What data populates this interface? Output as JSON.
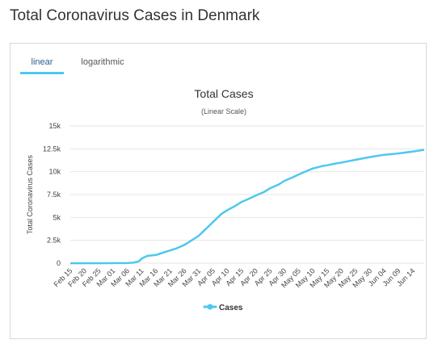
{
  "page": {
    "title": "Total Coronavirus Cases in Denmark"
  },
  "tabs": [
    {
      "label": "linear",
      "active": true
    },
    {
      "label": "logarithmic",
      "active": false
    }
  ],
  "colors": {
    "series": "#4dc8f0",
    "grid": "#e6e6e6",
    "tab_accent": "#4dc8f0"
  },
  "chart_data": {
    "type": "line",
    "title": "Total Cases",
    "subtitle": "(Linear Scale)",
    "ylabel": "Total Coronavirus Cases",
    "xlabel": "",
    "ylim": [
      0,
      15000
    ],
    "yticks": [
      0,
      2500,
      5000,
      7500,
      10000,
      12500,
      15000
    ],
    "ytick_labels": [
      "0",
      "2.5k",
      "5k",
      "7.5k",
      "10k",
      "12.5k",
      "15k"
    ],
    "xtick_labels": [
      "Feb 15",
      "Feb 20",
      "Feb 25",
      "Mar 01",
      "Mar 06",
      "Mar 11",
      "Mar 16",
      "Mar 21",
      "Mar 26",
      "Mar 31",
      "Apr 05",
      "Apr 10",
      "Apr 15",
      "Apr 20",
      "Apr 25",
      "Apr 30",
      "May 05",
      "May 10",
      "May 15",
      "May 20",
      "May 25",
      "May 30",
      "Jun 04",
      "Jun 09",
      "Jun 14"
    ],
    "grid": true,
    "legend_position": "bottom-center",
    "series": [
      {
        "name": "Cases",
        "x": [
          "Feb 15",
          "Feb 20",
          "Feb 25",
          "Mar 01",
          "Mar 06",
          "Mar 08",
          "Mar 10",
          "Mar 11",
          "Mar 13",
          "Mar 16",
          "Mar 18",
          "Mar 21",
          "Mar 23",
          "Mar 26",
          "Mar 28",
          "Mar 31",
          "Apr 02",
          "Apr 05",
          "Apr 08",
          "Apr 10",
          "Apr 13",
          "Apr 15",
          "Apr 18",
          "Apr 20",
          "Apr 23",
          "Apr 25",
          "Apr 28",
          "Apr 30",
          "May 03",
          "May 05",
          "May 08",
          "May 10",
          "May 13",
          "May 15",
          "May 18",
          "May 20",
          "May 25",
          "May 30",
          "Jun 04",
          "Jun 09",
          "Jun 14",
          "Jun 18"
        ],
        "values": [
          0,
          0,
          0,
          5,
          20,
          50,
          200,
          500,
          800,
          900,
          1100,
          1400,
          1600,
          2000,
          2400,
          3000,
          3600,
          4500,
          5400,
          5800,
          6300,
          6700,
          7100,
          7400,
          7800,
          8200,
          8600,
          9000,
          9400,
          9700,
          10100,
          10350,
          10600,
          10700,
          10900,
          11000,
          11300,
          11600,
          11850,
          12000,
          12200,
          12400
        ]
      }
    ]
  }
}
